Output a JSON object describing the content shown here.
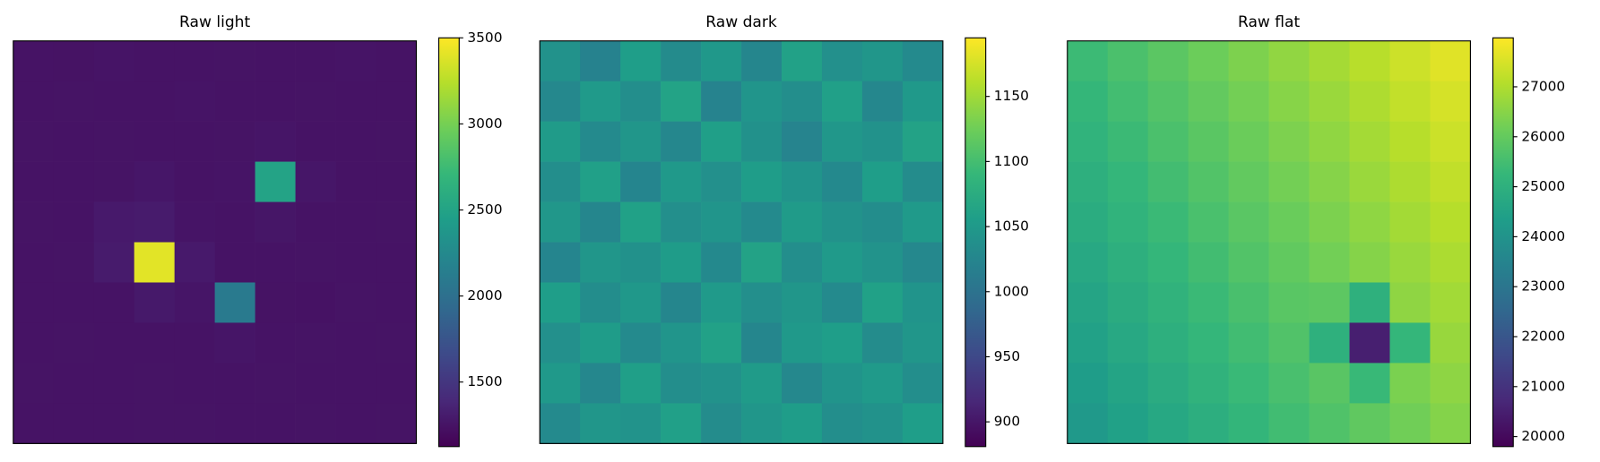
{
  "chart_data": [
    {
      "type": "heatmap",
      "title": "Raw light",
      "colormap": "viridis",
      "clim": [
        1125,
        3500
      ],
      "cticks": [
        1500,
        2000,
        2500,
        3000,
        3500
      ],
      "values": [
        [
          1250,
          1245,
          1255,
          1250,
          1248,
          1252,
          1250,
          1246,
          1254,
          1250
        ],
        [
          1248,
          1252,
          1250,
          1246,
          1254,
          1250,
          1249,
          1251,
          1250,
          1247
        ],
        [
          1251,
          1249,
          1253,
          1250,
          1247,
          1252,
          1262,
          1250,
          1248,
          1252
        ],
        [
          1250,
          1247,
          1251,
          1268,
          1250,
          1255,
          2500,
          1270,
          1250,
          1249
        ],
        [
          1252,
          1250,
          1290,
          1300,
          1255,
          1250,
          1265,
          1250,
          1247,
          1251
        ],
        [
          1248,
          1252,
          1300,
          3400,
          1290,
          1250,
          1248,
          1252,
          1250,
          1250
        ],
        [
          1250,
          1249,
          1250,
          1285,
          1262,
          2100,
          1245,
          1240,
          1251,
          1248
        ],
        [
          1247,
          1251,
          1249,
          1250,
          1250,
          1262,
          1250,
          1252,
          1249,
          1252
        ],
        [
          1252,
          1248,
          1250,
          1251,
          1249,
          1250,
          1251,
          1248,
          1250,
          1250
        ],
        [
          1250,
          1250,
          1248,
          1252,
          1251,
          1249,
          1250,
          1251,
          1249,
          1251
        ]
      ]
    },
    {
      "type": "heatmap",
      "title": "Raw dark",
      "colormap": "viridis",
      "clim": [
        881,
        1195
      ],
      "cticks": [
        900,
        950,
        1000,
        1050,
        1100,
        1150
      ],
      "values": [
        [
          1040,
          1020,
          1055,
          1032,
          1048,
          1025,
          1060,
          1038,
          1045,
          1030
        ],
        [
          1028,
          1050,
          1035,
          1062,
          1022,
          1044,
          1036,
          1058,
          1027,
          1049
        ],
        [
          1052,
          1031,
          1046,
          1027,
          1057,
          1039,
          1023,
          1047,
          1041,
          1061
        ],
        [
          1035,
          1058,
          1024,
          1049,
          1038,
          1054,
          1043,
          1029,
          1056,
          1033
        ],
        [
          1047,
          1026,
          1059,
          1037,
          1044,
          1030,
          1052,
          1040,
          1034,
          1051
        ],
        [
          1024,
          1045,
          1039,
          1053,
          1029,
          1061,
          1035,
          1050,
          1042,
          1028
        ],
        [
          1056,
          1034,
          1048,
          1025,
          1051,
          1037,
          1046,
          1031,
          1059,
          1043
        ],
        [
          1038,
          1053,
          1030,
          1044,
          1060,
          1026,
          1049,
          1055,
          1033,
          1046
        ],
        [
          1049,
          1027,
          1057,
          1036,
          1041,
          1052,
          1028,
          1043,
          1050,
          1035
        ],
        [
          1031,
          1046,
          1042,
          1058,
          1033,
          1045,
          1054,
          1036,
          1040,
          1055
        ]
      ]
    },
    {
      "type": "heatmap",
      "title": "Raw flat",
      "colormap": "viridis",
      "clim": [
        19800,
        27980
      ],
      "cticks": [
        20000,
        21000,
        22000,
        23000,
        24000,
        25000,
        26000,
        27000
      ],
      "values": [
        [
          25360,
          25610,
          25860,
          26110,
          26360,
          26610,
          26860,
          27110,
          27360,
          27610
        ],
        [
          25230,
          25480,
          25730,
          25980,
          26230,
          26480,
          26730,
          26980,
          27230,
          27480
        ],
        [
          25100,
          25350,
          25600,
          25850,
          26100,
          26350,
          26600,
          26850,
          27100,
          27350
        ],
        [
          24970,
          25220,
          25470,
          25720,
          25970,
          26220,
          26470,
          26720,
          26970,
          27220
        ],
        [
          24840,
          25090,
          25340,
          25590,
          25840,
          26090,
          26340,
          26590,
          26840,
          27090
        ],
        [
          24710,
          24960,
          25210,
          25460,
          25710,
          25960,
          26210,
          26460,
          26710,
          26960
        ],
        [
          24580,
          24830,
          25080,
          25330,
          25580,
          25830,
          25890,
          25000,
          26580,
          26830
        ],
        [
          24450,
          24700,
          24950,
          25200,
          25450,
          25700,
          25000,
          20500,
          25200,
          26700
        ],
        [
          24320,
          24570,
          24820,
          25070,
          25320,
          25570,
          25820,
          25300,
          26320,
          26570
        ],
        [
          24190,
          24440,
          24690,
          24940,
          25190,
          25440,
          25690,
          25940,
          26190,
          26440
        ]
      ]
    }
  ]
}
